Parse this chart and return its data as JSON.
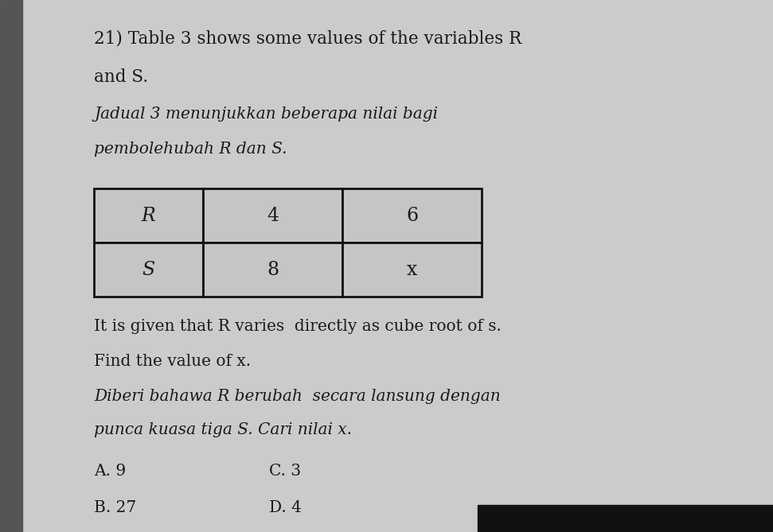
{
  "question_number": "21)",
  "line1_en": "Table 3 shows some values of the variables R",
  "line2_en": "and S.",
  "line1_ms": "Jadual 3 menunjukkan beberapa nilai bagi",
  "line2_ms": "pembolehubah R dan S.",
  "table_row1": [
    "R",
    "4",
    "6"
  ],
  "table_row2": [
    "S",
    "8",
    "x"
  ],
  "body_en1": "It is given that R varies  directly as cube root of s.",
  "body_en2": "Find the value of x.",
  "body_ms1": "Diberi bahawa R berubah  secara lansung dengan",
  "body_ms2": "punca kuasa tiga S. Cari nilai x.",
  "opt_A": "A. 9",
  "opt_B": "B. 27",
  "opt_C": "C. 3",
  "opt_D": "D. 4",
  "bg_color": "#cbcbcb",
  "text_color": "#1a1a1a",
  "table_bg": "#c5c5c5",
  "table_edge": "#111111",
  "left_strip_color": "#555555",
  "bottom_bar_color": "#111111",
  "fig_width": 9.71,
  "fig_height": 6.69,
  "dpi": 100
}
